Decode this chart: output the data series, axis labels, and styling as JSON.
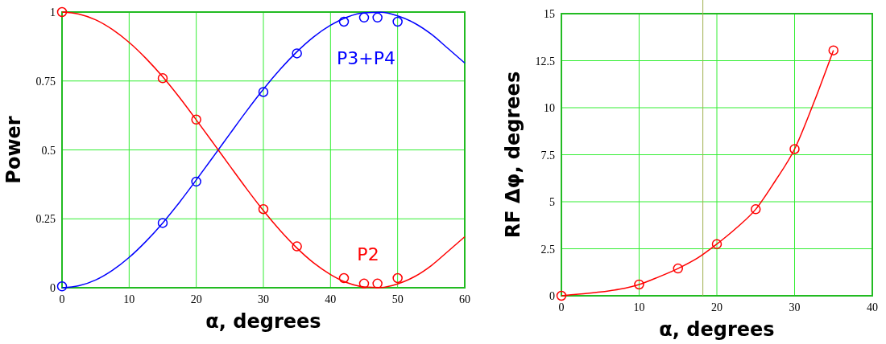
{
  "chart_data": [
    {
      "type": "line",
      "xlabel": "α, degrees",
      "ylabel": "Power",
      "xlim": [
        0,
        60
      ],
      "ylim": [
        0,
        1
      ],
      "xticks": [
        0,
        10,
        20,
        30,
        40,
        50,
        60
      ],
      "yticks": [
        0,
        0.25,
        0.5,
        0.75,
        1
      ],
      "grid": true,
      "x": [
        0,
        2.5,
        5,
        7.5,
        10,
        12.5,
        15,
        17.5,
        20,
        22.5,
        25,
        27.5,
        30,
        32.5,
        35,
        37.5,
        40,
        42.5,
        45,
        47.5,
        50,
        52.5,
        55,
        57.5,
        60
      ],
      "series": [
        {
          "name": "P3+P4",
          "color": "#0000ff",
          "marker": "none",
          "values": [
            0,
            0.007,
            0.028,
            0.063,
            0.11,
            0.168,
            0.235,
            0.31,
            0.391,
            0.474,
            0.558,
            0.641,
            0.72,
            0.792,
            0.856,
            0.91,
            0.952,
            0.982,
            0.997,
            0.999,
            0.986,
            0.96,
            0.92,
            0.868,
            0.815
          ]
        },
        {
          "name": "P2",
          "color": "#ff0000",
          "marker": "none",
          "values": [
            1,
            0.993,
            0.972,
            0.937,
            0.89,
            0.832,
            0.765,
            0.69,
            0.609,
            0.526,
            0.442,
            0.359,
            0.28,
            0.208,
            0.144,
            0.09,
            0.048,
            0.018,
            0.003,
            0.001,
            0.014,
            0.04,
            0.08,
            0.132,
            0.185
          ]
        },
        {
          "type": "scatter",
          "color": "#0000ff",
          "marker": "circle",
          "x": [
            0,
            15,
            20,
            30,
            35,
            42,
            45,
            47,
            50
          ],
          "values": [
            0.005,
            0.235,
            0.385,
            0.71,
            0.85,
            0.965,
            0.98,
            0.98,
            0.965
          ]
        },
        {
          "type": "scatter",
          "color": "#ff0000",
          "marker": "circle",
          "x": [
            0,
            15,
            20,
            30,
            35,
            42,
            45,
            47,
            50
          ],
          "values": [
            1,
            0.76,
            0.61,
            0.285,
            0.15,
            0.035,
            0.015,
            0.015,
            0.035
          ]
        }
      ]
    },
    {
      "type": "line",
      "xlabel": "α, degrees",
      "ylabel": "RF Δφ, degrees",
      "xlim": [
        0,
        40
      ],
      "ylim": [
        0,
        15
      ],
      "xticks": [
        0,
        10,
        20,
        30,
        40
      ],
      "yticks": [
        0,
        2.5,
        5,
        7.5,
        10,
        12.5,
        15
      ],
      "grid": true,
      "ref_lines": [
        {
          "axis": "x",
          "value": 18.2,
          "color": "#a0b050"
        }
      ],
      "series": [
        {
          "color": "#ff0000",
          "marker": "none",
          "x": [
            0,
            2.5,
            5,
            7.5,
            10,
            12.5,
            15,
            17.5,
            20,
            22.5,
            25,
            27.5,
            30,
            32.5,
            35
          ],
          "values": [
            0,
            0.1,
            0.2,
            0.35,
            0.6,
            1.0,
            1.45,
            2.0,
            2.75,
            3.6,
            4.6,
            6.1,
            7.8,
            10.3,
            13.05
          ]
        },
        {
          "type": "scatter",
          "color": "#ff0000",
          "marker": "circle",
          "x": [
            0,
            10,
            15,
            20,
            25,
            30,
            35
          ],
          "values": [
            0,
            0.6,
            1.45,
            2.75,
            4.6,
            7.8,
            13.05
          ]
        }
      ]
    }
  ]
}
